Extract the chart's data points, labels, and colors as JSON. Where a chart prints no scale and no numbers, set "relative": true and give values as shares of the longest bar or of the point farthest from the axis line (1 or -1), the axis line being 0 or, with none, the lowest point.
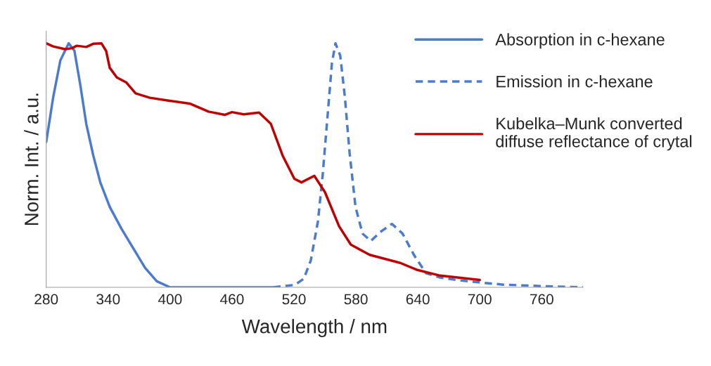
{
  "chart_data": {
    "type": "line",
    "relative": true,
    "xlabel": "Wavelength / nm",
    "ylabel": "Norm. Int. / a.u.",
    "xlim": [
      280,
      800
    ],
    "xticks": [
      280,
      340,
      400,
      460,
      520,
      580,
      640,
      700,
      760
    ],
    "legend": "top right",
    "grid": false,
    "series": [
      {
        "name": "Absorption in c-hexane",
        "color": "#4a7bd0",
        "line_style": "solid",
        "x": [
          280,
          286.8,
          293.7,
          301.7,
          307.3,
          313,
          318.8,
          325.6,
          332.4,
          341.5,
          352.9,
          364.3,
          375.7,
          387.1,
          400,
          500
        ],
        "values": [
          0.595,
          0.78,
          0.93,
          1.0,
          0.97,
          0.83,
          0.67,
          0.54,
          0.43,
          0.33,
          0.24,
          0.16,
          0.08,
          0.025,
          0,
          0
        ]
      },
      {
        "name": "Emission in c-hexane",
        "color": "#4a7bd0",
        "line_style": "dashed",
        "x": [
          500,
          521,
          529.5,
          536.3,
          543.2,
          547.7,
          552.3,
          556.8,
          560.2,
          564.8,
          569.3,
          573.9,
          579.6,
          586.4,
          594.4,
          604.7,
          614.9,
          625.2,
          636.6,
          647.9,
          661.6,
          677.5,
          700,
          722.7,
          759.6,
          800
        ],
        "values": [
          0,
          0.01,
          0.035,
          0.11,
          0.27,
          0.455,
          0.69,
          0.92,
          1.0,
          0.95,
          0.78,
          0.55,
          0.33,
          0.22,
          0.19,
          0.23,
          0.26,
          0.22,
          0.13,
          0.058,
          0.04,
          0.03,
          0.02,
          0.011,
          0.005,
          0
        ]
      },
      {
        "name": "Kubelka–Munk converted\ndiffuse reflectance of crytal",
        "color": "#c00000",
        "line_style": "solid",
        "x": [
          280,
          286.8,
          298.2,
          305,
          309.6,
          318.8,
          325.6,
          333.5,
          338.1,
          341.5,
          348.4,
          357.4,
          366.6,
          380.3,
          398.5,
          419,
          437.2,
          453.2,
          460,
          471.4,
          486.2,
          497.6,
          509,
          520.4,
          527.2,
          539.7,
          550,
          563.7,
          575.1,
          593.3,
          622.9,
          638.8,
          661.6,
          700
        ],
        "values": [
          1.0,
          0.987,
          0.976,
          0.98,
          0.99,
          0.985,
          0.998,
          1.0,
          0.968,
          0.9,
          0.86,
          0.84,
          0.795,
          0.777,
          0.765,
          0.753,
          0.72,
          0.707,
          0.718,
          0.709,
          0.716,
          0.67,
          0.54,
          0.445,
          0.43,
          0.457,
          0.39,
          0.25,
          0.175,
          0.133,
          0.1,
          0.072,
          0.048,
          0.03
        ]
      }
    ]
  }
}
